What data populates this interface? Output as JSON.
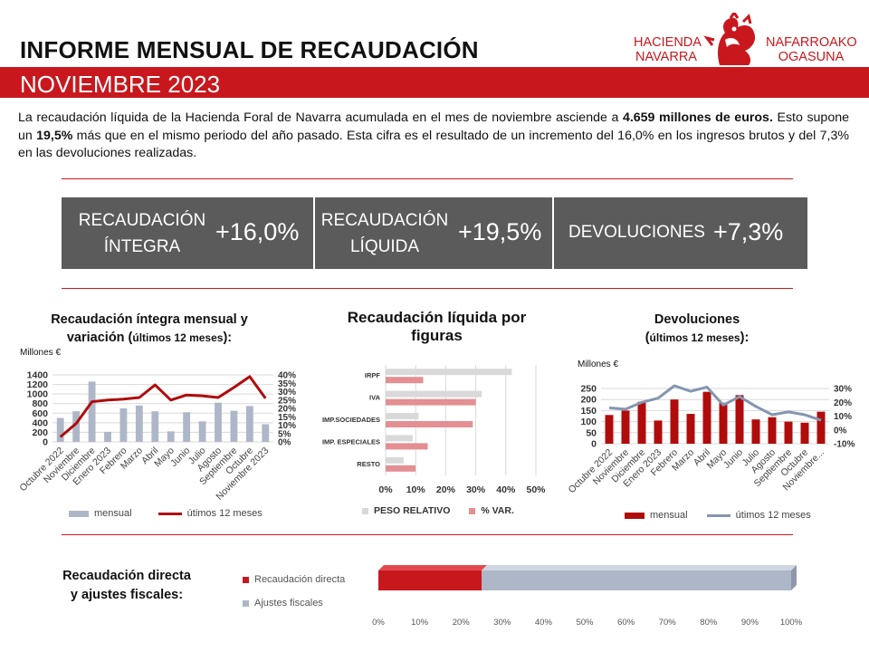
{
  "header": {
    "title": "INFORME MENSUAL DE RECAUDACIÓN",
    "subtitle": "NOVIEMBRE 2023",
    "logo_left": [
      "HACIENDA",
      "NAVARRA"
    ],
    "logo_right": [
      "NAFARROAKO",
      "OGASUNA"
    ]
  },
  "intro": {
    "p1": "La recaudación líquida de la Hacienda Foral de Navarra acumulada en el mes de noviembre asciende a ",
    "b1": "4.659 millones de euros.",
    "p2": " Esto supone un ",
    "b2": "19,5%",
    "p3": " más que en el mismo periodo del año pasado. Esta cifra es el resultado de un incremento del 16,0% en los ingresos brutos y del 7,3% en las devoluciones realizadas."
  },
  "kpis": [
    {
      "label_1": "RECAUDACIÓN",
      "label_2": "ÍNTEGRA",
      "value": "+16,0%"
    },
    {
      "label_1": "RECAUDACIÓN",
      "label_2": "LÍQUIDA",
      "value": "+19,5%"
    },
    {
      "label_1": "DEVOLUCIONES",
      "label_2": "",
      "value": "+7,3%"
    }
  ],
  "colors": {
    "brand_red": "#c8181e",
    "kpi_gray": "#5b5b5b",
    "bar_gray": "#aeb7c8",
    "dark_red": "#b00c0c",
    "line_slate": "#8496b0",
    "light_gray": "#d9d9d9",
    "pink": "#e48f93"
  },
  "charts": {
    "integra": {
      "title_1": "Recaudación íntegra mensual y",
      "title_2": "variación",
      "title_3": " (",
      "title_4": "últimos 12 meses",
      "title_5": "):",
      "unit": "Millones €"
    },
    "figuras": {
      "title_1": "Recaudación líquida por",
      "title_2": "figuras"
    },
    "devoluciones": {
      "title_1": "Devoluciones",
      "title_2": "(",
      "title_3": "últimos 12 meses",
      "title_4": "):",
      "unit": "Millones €"
    },
    "ajustes": {
      "title_1": "Recaudación directa",
      "title_2": "y ajustes fiscales:"
    }
  },
  "chart_data": [
    {
      "type": "bar",
      "categories": [
        "Octubre 2022",
        "Noviembre",
        "Diciembre",
        "Enero 2023",
        "Febrero",
        "Marzo",
        "Abril",
        "Mayo",
        "Junio",
        "Julio",
        "Agosto",
        "Septiembre",
        "Octubre",
        "Noviembre 2023"
      ],
      "series": [
        {
          "name": "mensual",
          "chart": "bar",
          "axis": "left",
          "values": [
            500,
            640,
            1260,
            210,
            700,
            760,
            640,
            220,
            620,
            430,
            820,
            650,
            750,
            370
          ]
        },
        {
          "name": "útimos 12 meses",
          "chart": "line",
          "axis": "right",
          "values": [
            3,
            11,
            24,
            25,
            25.5,
            26.5,
            34,
            25,
            28,
            27.5,
            26.5,
            32.5,
            39,
            26
          ]
        }
      ],
      "ylim": [
        0,
        1400
      ],
      "yticks": [
        0,
        200,
        400,
        600,
        800,
        1000,
        1200,
        1400
      ],
      "y2lim": [
        0,
        40
      ],
      "y2ticks": [
        "0%",
        "5%",
        "10%",
        "15%",
        "20%",
        "25%",
        "30%",
        "35%",
        "40%"
      ],
      "grid": true,
      "legend": "bottom"
    },
    {
      "type": "bar",
      "orientation": "horizontal",
      "categories": [
        "IRPF",
        "IVA",
        "IMP.SOCIEDADES",
        "IMP. ESPECIALES",
        "RESTO"
      ],
      "series": [
        {
          "name": "PESO RELATIVO",
          "values": [
            42,
            32,
            11,
            9,
            6
          ]
        },
        {
          "name": "% VAR.",
          "values": [
            12.5,
            30,
            29,
            14,
            10
          ]
        }
      ],
      "xlim": [
        0,
        50
      ],
      "xticks": [
        "0%",
        "10%",
        "20%",
        "30%",
        "40%",
        "50%"
      ],
      "grid": true,
      "legend": "bottom"
    },
    {
      "type": "bar",
      "categories": [
        "Octubre 2022",
        "Noviembre",
        "Diciembre",
        "Enero 2023",
        "Febrero",
        "Marzo",
        "Abril",
        "Mayo",
        "Junio",
        "Julio",
        "Agosto",
        "Septiembre",
        "Octubre",
        "Noviembre..."
      ],
      "series": [
        {
          "name": "mensual",
          "chart": "bar",
          "axis": "left",
          "values": [
            130,
            150,
            190,
            105,
            200,
            135,
            235,
            185,
            220,
            110,
            120,
            100,
            95,
            145
          ]
        },
        {
          "name": "útimos 12 meses",
          "chart": "line",
          "axis": "right",
          "values": [
            16,
            15,
            20,
            23,
            32,
            28,
            31,
            18,
            24,
            17,
            11,
            13,
            11,
            7
          ]
        }
      ],
      "ylim": [
        0,
        250
      ],
      "yticks": [
        0,
        50,
        100,
        150,
        200,
        250
      ],
      "y2lim": [
        -10,
        30
      ],
      "y2ticks": [
        "-10%",
        "0%",
        "10%",
        "20%",
        "30%"
      ],
      "grid": true,
      "legend": "bottom"
    },
    {
      "type": "bar",
      "orientation": "horizontal",
      "stacked": true,
      "categories": [
        ""
      ],
      "series": [
        {
          "name": "Recaudación directa",
          "values": [
            25
          ]
        },
        {
          "name": "Ajustes fiscales",
          "values": [
            75
          ]
        }
      ],
      "xlim": [
        0,
        100
      ],
      "xticks": [
        "0%",
        "10%",
        "20%",
        "30%",
        "40%",
        "50%",
        "60%",
        "70%",
        "80%",
        "90%",
        "100%"
      ],
      "legend": "left"
    }
  ]
}
